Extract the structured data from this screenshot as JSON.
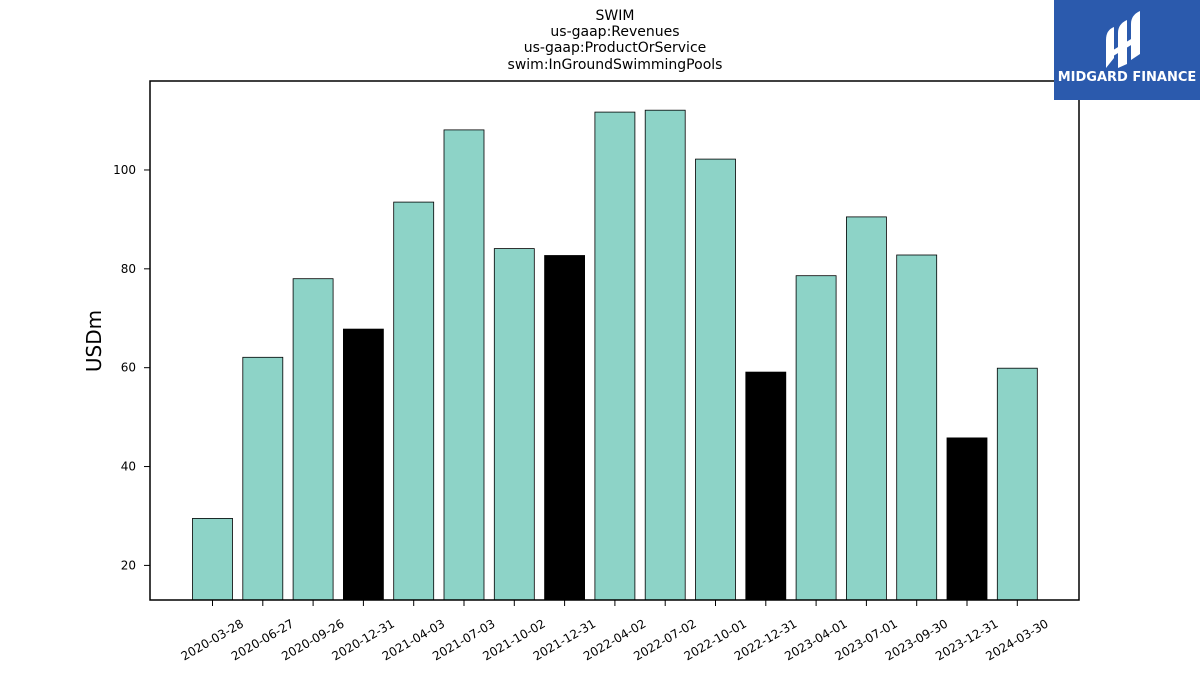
{
  "chart_data": {
    "type": "bar",
    "title_lines": [
      "SWIM",
      "us-gaap:Revenues",
      "us-gaap:ProductOrService",
      "swim:InGroundSwimmingPools"
    ],
    "xlabel": "",
    "ylabel": "USDm",
    "ylim": [
      13,
      118
    ],
    "yticks": [
      20,
      40,
      60,
      80,
      100
    ],
    "grid": false,
    "categories": [
      "2020-03-28",
      "2020-06-27",
      "2020-09-26",
      "2020-12-31",
      "2021-04-03",
      "2021-07-03",
      "2021-10-02",
      "2021-12-31",
      "2022-04-02",
      "2022-07-02",
      "2022-10-01",
      "2022-12-31",
      "2023-04-01",
      "2023-07-01",
      "2023-09-30",
      "2023-12-31",
      "2024-03-30"
    ],
    "values": [
      29.5,
      62.1,
      78.0,
      67.8,
      93.5,
      108.1,
      84.1,
      82.7,
      111.7,
      112.1,
      102.2,
      59.1,
      78.6,
      90.5,
      82.8,
      45.8,
      59.9
    ],
    "colors": [
      "#8dd3c7",
      "#8dd3c7",
      "#8dd3c7",
      "#000000",
      "#8dd3c7",
      "#8dd3c7",
      "#8dd3c7",
      "#000000",
      "#8dd3c7",
      "#8dd3c7",
      "#8dd3c7",
      "#000000",
      "#8dd3c7",
      "#8dd3c7",
      "#8dd3c7",
      "#000000",
      "#8dd3c7"
    ]
  },
  "logo": {
    "text": "MIDGARD FINANCE",
    "bg_color": "#2b5aad"
  }
}
